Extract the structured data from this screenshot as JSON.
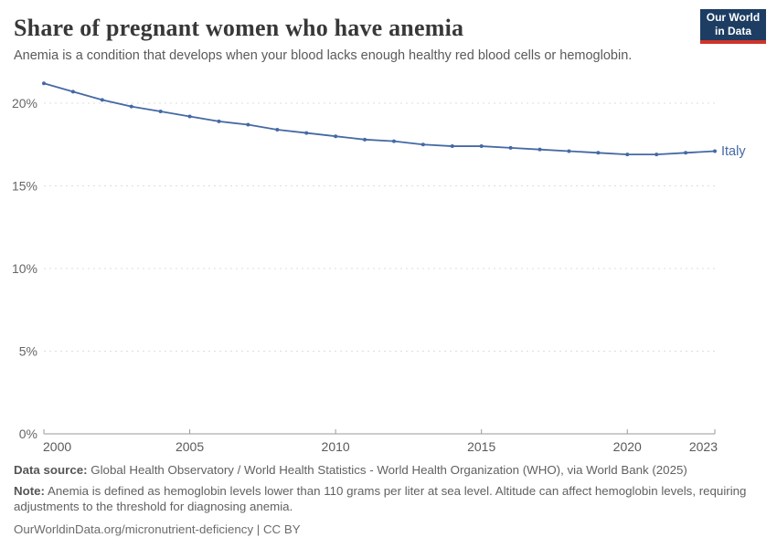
{
  "header": {
    "title": "Share of pregnant women who have anemia",
    "subtitle": "Anemia is a condition that develops when your blood lacks enough healthy red blood cells or hemoglobin.",
    "logo_line1": "Our World",
    "logo_line2": "in Data"
  },
  "chart_data": {
    "type": "line",
    "title": "Share of pregnant women who have anemia",
    "x": [
      2000,
      2001,
      2002,
      2003,
      2004,
      2005,
      2006,
      2007,
      2008,
      2009,
      2010,
      2011,
      2012,
      2013,
      2014,
      2015,
      2016,
      2017,
      2018,
      2019,
      2020,
      2021,
      2022,
      2023
    ],
    "series": [
      {
        "name": "Italy",
        "color": "#4569a5",
        "values": [
          21.2,
          20.7,
          20.2,
          19.8,
          19.5,
          19.2,
          18.9,
          18.7,
          18.4,
          18.2,
          18.0,
          17.8,
          17.7,
          17.5,
          17.4,
          17.4,
          17.3,
          17.2,
          17.1,
          17.0,
          16.9,
          16.9,
          17.0,
          17.1
        ]
      }
    ],
    "xlabel": "",
    "ylabel": "",
    "ylim": [
      0,
      21.5
    ],
    "xlim": [
      2000,
      2023
    ],
    "yticks": [
      0,
      5,
      10,
      15,
      20
    ],
    "ytick_suffix": "%",
    "xticks": [
      2000,
      2005,
      2010,
      2015,
      2020,
      2023
    ],
    "grid": "horizontal-dashed",
    "legend_position": "end-of-line-label"
  },
  "footer": {
    "data_source_label": "Data source:",
    "data_source_text": " Global Health Observatory / World Health Statistics - World Health Organization (WHO), via World Bank (2025)",
    "note_label": "Note:",
    "note_text": " Anemia is defined as hemoglobin levels lower than 110 grams per liter at sea level. Altitude can affect hemoglobin levels, requiring adjustments to the threshold for diagnosing anemia.",
    "citation_link": "OurWorldinData.org/micronutrient-deficiency | CC BY"
  },
  "colors": {
    "accent_line": "#4569a5",
    "grid": "#dddddd",
    "axis": "#9a9a9a",
    "logo_bg": "#1d3d63",
    "logo_red": "#cf342a"
  }
}
